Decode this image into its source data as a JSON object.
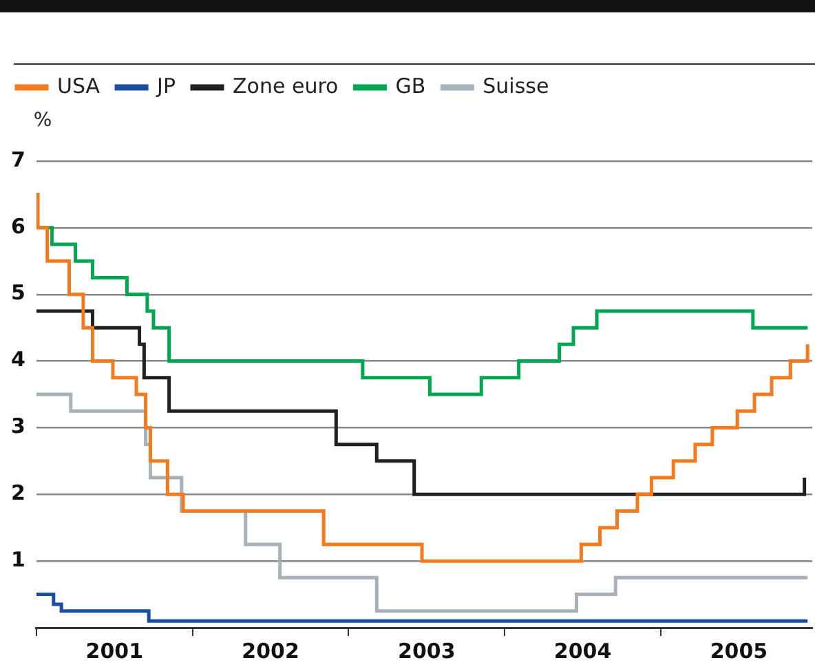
{
  "chart_data": {
    "type": "step",
    "ylabel": "%",
    "legend": "top left",
    "grid": "y",
    "xlim": [
      2001,
      2005.97
    ],
    "xticks": [
      {
        "value": 2001,
        "label": null
      },
      {
        "value": 2001.5,
        "label": "2001"
      },
      {
        "value": 2002,
        "label": null
      },
      {
        "value": 2002.5,
        "label": "2002"
      },
      {
        "value": 2003,
        "label": null
      },
      {
        "value": 2003.5,
        "label": "2003"
      },
      {
        "value": 2004,
        "label": null
      },
      {
        "value": 2004.5,
        "label": "2004"
      },
      {
        "value": 2005,
        "label": null
      },
      {
        "value": 2005.5,
        "label": "2005"
      }
    ],
    "ylim": [
      0,
      7
    ],
    "yticks": [
      1,
      2,
      3,
      4,
      5,
      6,
      7
    ],
    "series": [
      {
        "name": "USA",
        "color": "#f47a20",
        "x": [
          2001.0,
          2001.01,
          2001.07,
          2001.21,
          2001.3,
          2001.36,
          2001.49,
          2001.64,
          2001.7,
          2001.73,
          2001.84,
          2001.94,
          2002.84,
          2003.47,
          2004.49,
          2004.61,
          2004.72,
          2004.85,
          2004.94,
          2005.08,
          2005.22,
          2005.33,
          2005.49,
          2005.6,
          2005.71,
          2005.83,
          2005.94
        ],
        "values": [
          6.5,
          6.0,
          5.5,
          5.0,
          4.5,
          4.0,
          3.75,
          3.5,
          3.0,
          2.5,
          2.0,
          1.75,
          1.25,
          1.0,
          1.25,
          1.5,
          1.75,
          2.0,
          2.25,
          2.5,
          2.75,
          3.0,
          3.25,
          3.5,
          3.75,
          4.0,
          4.25
        ]
      },
      {
        "name": "JP",
        "color": "#1a4ea0",
        "x": [
          2001.0,
          2001.11,
          2001.16,
          2001.72,
          2005.94
        ],
        "values": [
          0.5,
          0.35,
          0.25,
          0.1,
          0.1
        ]
      },
      {
        "name": "Zone euro",
        "color": "#231f20",
        "x": [
          2001.0,
          2001.36,
          2001.66,
          2001.69,
          2001.85,
          2002.92,
          2003.18,
          2003.42,
          2005.92
        ],
        "values": [
          4.75,
          4.5,
          4.25,
          3.75,
          3.25,
          2.75,
          2.5,
          2.0,
          2.25
        ]
      },
      {
        "name": "GB",
        "color": "#00a651",
        "x": [
          2001.0,
          2001.1,
          2001.25,
          2001.36,
          2001.58,
          2001.71,
          2001.75,
          2001.85,
          2003.09,
          2003.52,
          2003.85,
          2004.09,
          2004.35,
          2004.44,
          2004.59,
          2005.59,
          2005.94
        ],
        "values": [
          6.0,
          5.75,
          5.5,
          5.25,
          5.0,
          4.75,
          4.5,
          4.0,
          3.75,
          3.5,
          3.75,
          4.0,
          4.25,
          4.5,
          4.75,
          4.5,
          4.5
        ]
      },
      {
        "name": "Suisse",
        "color": "#a7b1b7",
        "x": [
          2001.0,
          2001.22,
          2001.7,
          2001.73,
          2001.93,
          2002.34,
          2002.56,
          2003.18,
          2004.46,
          2004.71,
          2005.94
        ],
        "values": [
          3.5,
          3.25,
          2.75,
          2.25,
          1.75,
          1.25,
          0.75,
          0.25,
          0.5,
          0.75,
          0.75
        ]
      }
    ]
  }
}
